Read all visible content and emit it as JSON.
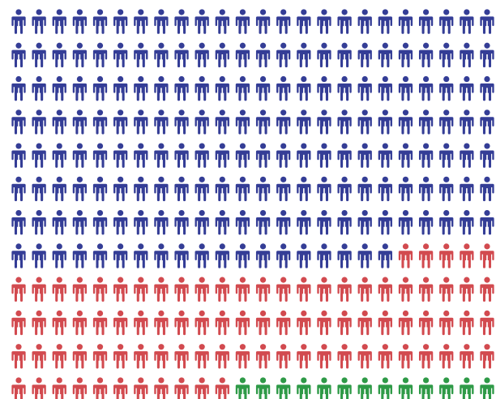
{
  "chart_data": {
    "type": "pictogram",
    "icon": "person-icon",
    "columns": 24,
    "rows": 12,
    "series": [
      {
        "count": 187,
        "color": "#343d96"
      },
      {
        "count": 88,
        "color": "#d24a4f"
      },
      {
        "count": 13,
        "color": "#2e9a47"
      }
    ]
  }
}
